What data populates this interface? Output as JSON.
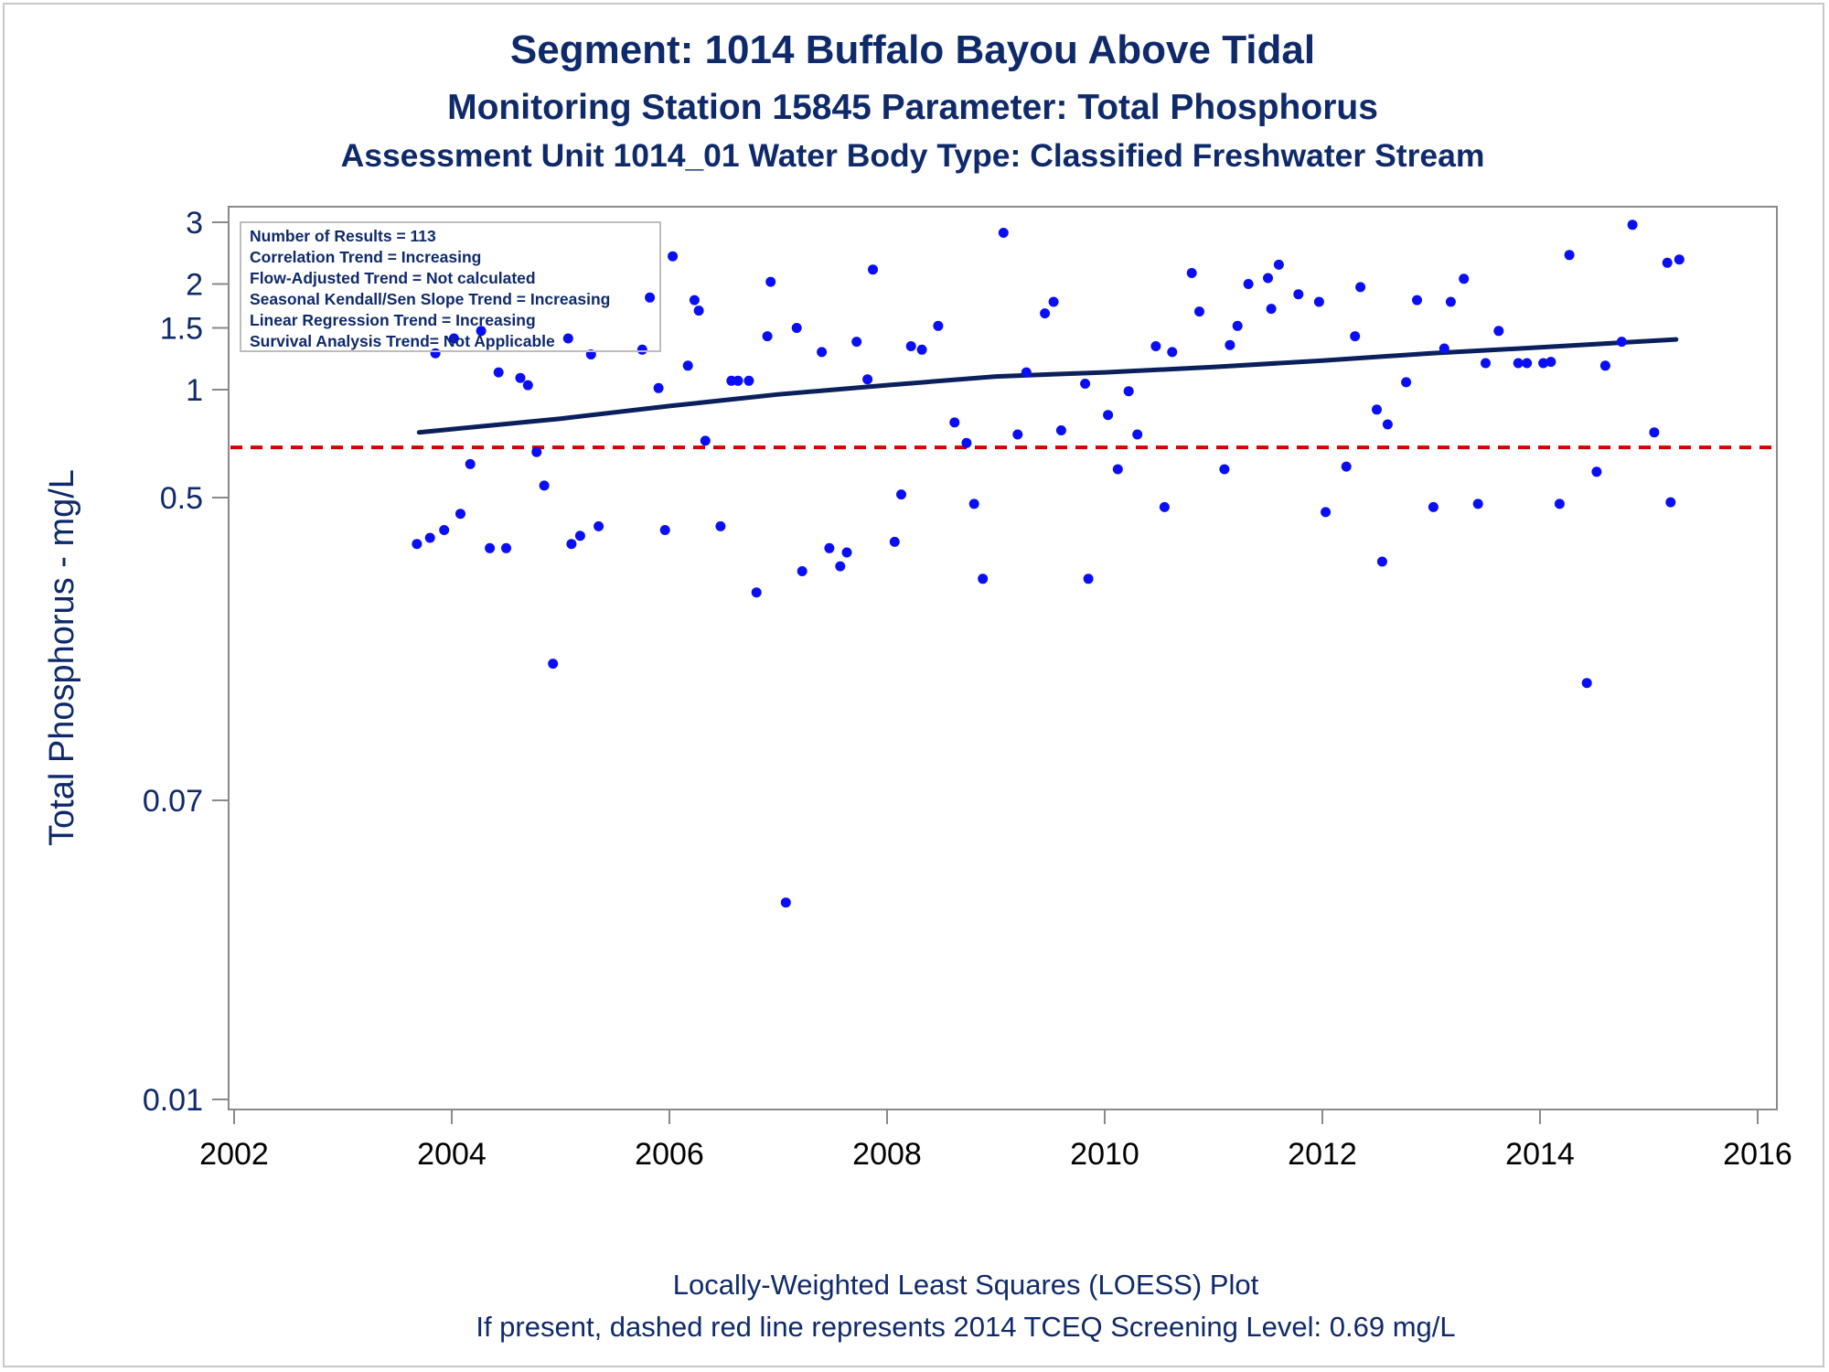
{
  "titles": {
    "line1": "Segment: 1014  Buffalo Bayou Above Tidal",
    "line2": "Monitoring Station 15845 Parameter: Total Phosphorus",
    "line3": "Assessment Unit 1014_01   Water Body Type: Classified Freshwater Stream"
  },
  "stats_box": [
    "Number of Results = 113",
    "Correlation Trend = Increasing",
    "Flow-Adjusted Trend = Not calculated",
    "Seasonal Kendall/Sen Slope Trend = Increasing",
    "Linear Regression Trend = Increasing",
    "Survival Analysis Trend= Not Applicable"
  ],
  "footer": {
    "line1": "Locally-Weighted Least Squares (LOESS) Plot",
    "line2": "If present, dashed red line represents 2014 TCEQ Screening Level: 0.69 mg/L"
  },
  "colors": {
    "points": "#0a0ef5",
    "trend_line": "#0a1f5c",
    "screening_line": "#d40000",
    "text": "#0f2a6b",
    "axis": "#8a8a8a"
  },
  "chart_data": {
    "type": "scatter",
    "title": "Segment: 1014  Buffalo Bayou Above Tidal",
    "xlabel": "",
    "ylabel": "Total Phosphorus - mg/L",
    "xlim": [
      2002,
      2016
    ],
    "ylim": [
      0.01,
      3.5
    ],
    "y_scale": "log",
    "x_ticks": [
      "2002",
      "2004",
      "2006",
      "2008",
      "2010",
      "2012",
      "2014",
      "2016"
    ],
    "y_ticks": [
      "0.01",
      "0.07",
      "0.5",
      "1",
      "1.5",
      "2",
      "3"
    ],
    "grid": false,
    "legend": "none",
    "screening_level": 0.69,
    "trend_line": {
      "name": "",
      "x": [
        2003.7,
        2005.0,
        2006.0,
        2007.0,
        2008.0,
        2009.0,
        2010.0,
        2011.0,
        2012.0,
        2013.0,
        2014.0,
        2015.25
      ],
      "y": [
        0.76,
        0.83,
        0.9,
        0.97,
        1.03,
        1.09,
        1.12,
        1.16,
        1.21,
        1.27,
        1.32,
        1.39
      ]
    },
    "points": [
      {
        "x": 2003.68,
        "y": 0.37
      },
      {
        "x": 2003.8,
        "y": 0.385
      },
      {
        "x": 2003.85,
        "y": 1.27
      },
      {
        "x": 2003.93,
        "y": 0.405
      },
      {
        "x": 2004.02,
        "y": 1.4
      },
      {
        "x": 2004.08,
        "y": 0.45
      },
      {
        "x": 2004.17,
        "y": 0.62
      },
      {
        "x": 2004.27,
        "y": 1.47
      },
      {
        "x": 2004.35,
        "y": 0.36
      },
      {
        "x": 2004.43,
        "y": 1.12
      },
      {
        "x": 2004.5,
        "y": 0.36
      },
      {
        "x": 2004.63,
        "y": 1.08
      },
      {
        "x": 2004.7,
        "y": 1.03
      },
      {
        "x": 2004.78,
        "y": 0.67
      },
      {
        "x": 2004.85,
        "y": 0.54
      },
      {
        "x": 2004.93,
        "y": 0.17
      },
      {
        "x": 2005.07,
        "y": 1.4
      },
      {
        "x": 2005.1,
        "y": 0.37
      },
      {
        "x": 2005.18,
        "y": 0.39
      },
      {
        "x": 2005.28,
        "y": 1.26
      },
      {
        "x": 2005.35,
        "y": 0.415
      },
      {
        "x": 2005.75,
        "y": 1.3
      },
      {
        "x": 2005.82,
        "y": 1.83
      },
      {
        "x": 2005.9,
        "y": 1.01
      },
      {
        "x": 2005.96,
        "y": 0.405
      },
      {
        "x": 2006.03,
        "y": 2.4
      },
      {
        "x": 2006.17,
        "y": 1.17
      },
      {
        "x": 2006.23,
        "y": 1.8
      },
      {
        "x": 2006.27,
        "y": 1.68
      },
      {
        "x": 2006.33,
        "y": 0.72
      },
      {
        "x": 2006.47,
        "y": 0.415
      },
      {
        "x": 2006.57,
        "y": 1.06
      },
      {
        "x": 2006.63,
        "y": 1.06
      },
      {
        "x": 2006.73,
        "y": 1.06
      },
      {
        "x": 2006.8,
        "y": 0.27
      },
      {
        "x": 2006.9,
        "y": 1.42
      },
      {
        "x": 2006.93,
        "y": 2.03
      },
      {
        "x": 2007.07,
        "y": 0.036
      },
      {
        "x": 2007.17,
        "y": 1.5
      },
      {
        "x": 2007.22,
        "y": 0.31
      },
      {
        "x": 2007.4,
        "y": 1.28
      },
      {
        "x": 2007.47,
        "y": 0.36
      },
      {
        "x": 2007.57,
        "y": 0.32
      },
      {
        "x": 2007.63,
        "y": 0.35
      },
      {
        "x": 2007.72,
        "y": 1.37
      },
      {
        "x": 2007.82,
        "y": 1.07
      },
      {
        "x": 2007.87,
        "y": 2.2
      },
      {
        "x": 2008.07,
        "y": 0.375
      },
      {
        "x": 2008.13,
        "y": 0.51
      },
      {
        "x": 2008.22,
        "y": 1.33
      },
      {
        "x": 2008.32,
        "y": 1.3
      },
      {
        "x": 2008.47,
        "y": 1.52
      },
      {
        "x": 2008.62,
        "y": 0.81
      },
      {
        "x": 2008.73,
        "y": 0.71
      },
      {
        "x": 2008.8,
        "y": 0.48
      },
      {
        "x": 2008.88,
        "y": 0.295
      },
      {
        "x": 2009.07,
        "y": 2.8
      },
      {
        "x": 2009.2,
        "y": 0.75
      },
      {
        "x": 2009.28,
        "y": 1.12
      },
      {
        "x": 2009.45,
        "y": 1.65
      },
      {
        "x": 2009.53,
        "y": 1.78
      },
      {
        "x": 2009.6,
        "y": 0.77
      },
      {
        "x": 2009.82,
        "y": 1.04
      },
      {
        "x": 2009.85,
        "y": 0.295
      },
      {
        "x": 2010.03,
        "y": 0.85
      },
      {
        "x": 2010.12,
        "y": 0.6
      },
      {
        "x": 2010.22,
        "y": 0.99
      },
      {
        "x": 2010.3,
        "y": 0.75
      },
      {
        "x": 2010.47,
        "y": 1.33
      },
      {
        "x": 2010.55,
        "y": 0.47
      },
      {
        "x": 2010.62,
        "y": 1.28
      },
      {
        "x": 2010.8,
        "y": 2.15
      },
      {
        "x": 2010.87,
        "y": 1.67
      },
      {
        "x": 2011.1,
        "y": 0.6
      },
      {
        "x": 2011.15,
        "y": 1.34
      },
      {
        "x": 2011.22,
        "y": 1.52
      },
      {
        "x": 2011.32,
        "y": 2.0
      },
      {
        "x": 2011.5,
        "y": 2.08
      },
      {
        "x": 2011.53,
        "y": 1.7
      },
      {
        "x": 2011.6,
        "y": 2.27
      },
      {
        "x": 2011.78,
        "y": 1.87
      },
      {
        "x": 2011.97,
        "y": 1.78
      },
      {
        "x": 2012.03,
        "y": 0.455
      },
      {
        "x": 2012.22,
        "y": 0.61
      },
      {
        "x": 2012.3,
        "y": 1.42
      },
      {
        "x": 2012.35,
        "y": 1.96
      },
      {
        "x": 2012.5,
        "y": 0.88
      },
      {
        "x": 2012.55,
        "y": 0.33
      },
      {
        "x": 2012.6,
        "y": 0.8
      },
      {
        "x": 2012.77,
        "y": 1.05
      },
      {
        "x": 2012.87,
        "y": 1.8
      },
      {
        "x": 2013.02,
        "y": 0.47
      },
      {
        "x": 2013.12,
        "y": 1.31
      },
      {
        "x": 2013.18,
        "y": 1.78
      },
      {
        "x": 2013.3,
        "y": 2.07
      },
      {
        "x": 2013.43,
        "y": 0.48
      },
      {
        "x": 2013.5,
        "y": 1.19
      },
      {
        "x": 2013.62,
        "y": 1.47
      },
      {
        "x": 2013.8,
        "y": 1.19
      },
      {
        "x": 2013.88,
        "y": 1.19
      },
      {
        "x": 2014.03,
        "y": 1.19
      },
      {
        "x": 2014.1,
        "y": 1.2
      },
      {
        "x": 2014.18,
        "y": 0.48
      },
      {
        "x": 2014.27,
        "y": 2.42
      },
      {
        "x": 2014.43,
        "y": 0.15
      },
      {
        "x": 2014.52,
        "y": 0.59
      },
      {
        "x": 2014.6,
        "y": 1.17
      },
      {
        "x": 2014.75,
        "y": 1.37
      },
      {
        "x": 2014.85,
        "y": 2.95
      },
      {
        "x": 2015.05,
        "y": 0.76
      },
      {
        "x": 2015.17,
        "y": 2.3
      },
      {
        "x": 2015.2,
        "y": 0.485
      },
      {
        "x": 2015.28,
        "y": 2.35
      }
    ]
  }
}
